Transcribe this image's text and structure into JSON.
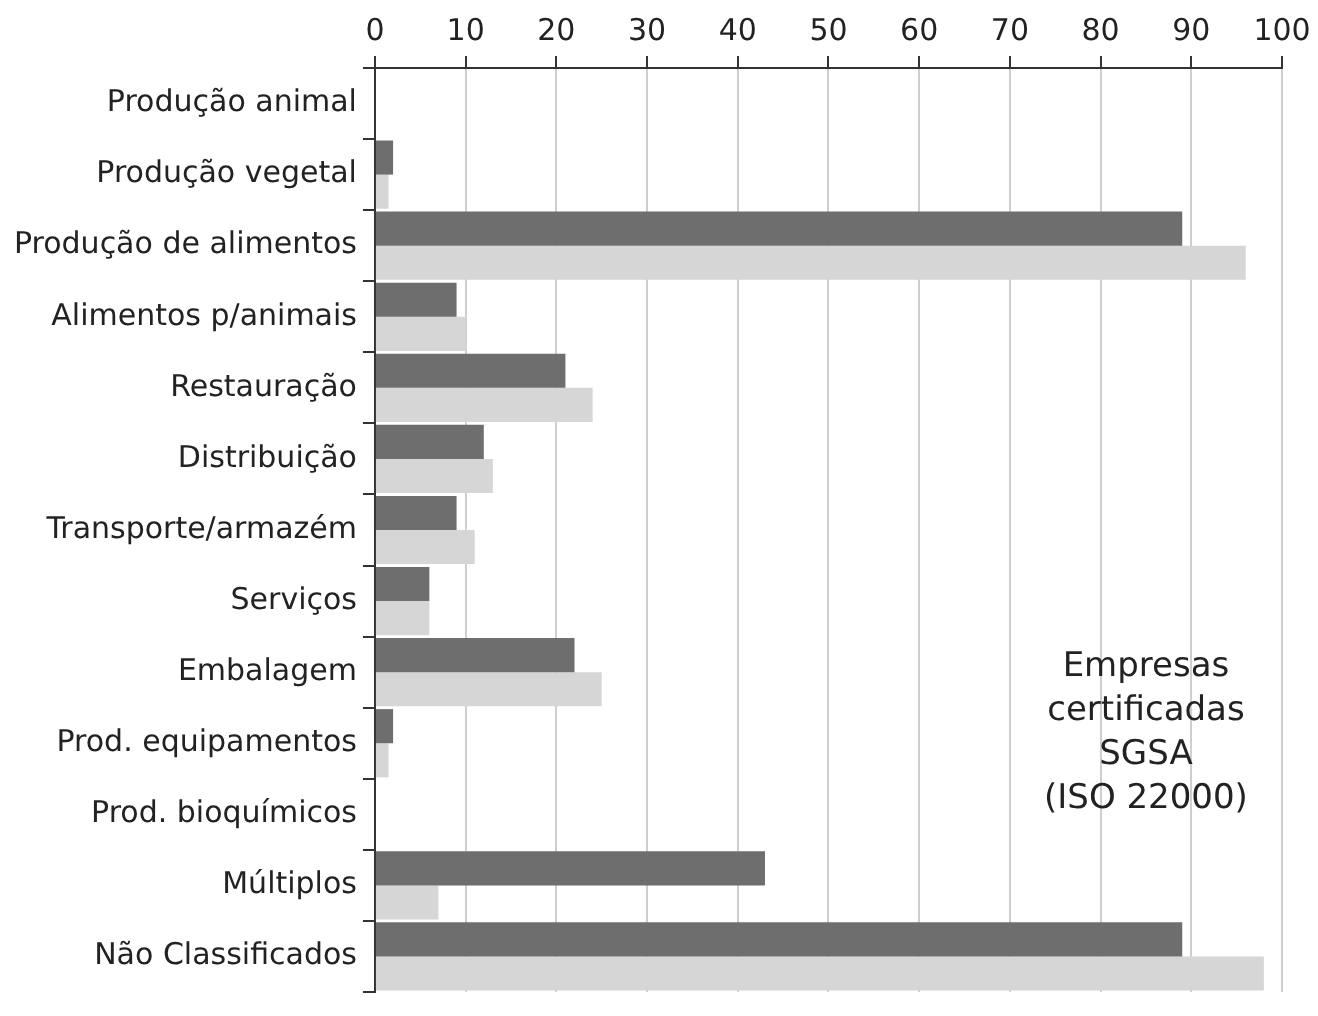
{
  "chart_data": {
    "type": "bar",
    "orientation": "horizontal",
    "categories": [
      "Produção animal",
      "Produção vegetal",
      "Produção de alimentos",
      "Alimentos p/animais",
      "Restauração",
      "Distribuição",
      "Transporte/armazém",
      "Serviços",
      "Embalagem",
      "Prod. equipamentos",
      "Prod. bioquímicos",
      "Múltiplos",
      "Não Classificados"
    ],
    "series": [
      {
        "color": "#6e6e6e",
        "values": [
          0,
          2,
          89,
          9,
          21,
          12,
          9,
          6,
          22,
          2,
          0,
          43,
          89
        ]
      },
      {
        "color": "#d6d6d6",
        "values": [
          0,
          1.5,
          96,
          10,
          24,
          13,
          11,
          6,
          25,
          1.5,
          0,
          7,
          98
        ]
      }
    ],
    "xlim": [
      0,
      100
    ],
    "xticks": [
      0,
      10,
      20,
      30,
      40,
      50,
      60,
      70,
      80,
      90,
      100
    ],
    "grid": "x",
    "legend": false,
    "annotations": [
      "Empresas\ncertificadas\nSGSA\n(ISO 22000)"
    ]
  }
}
